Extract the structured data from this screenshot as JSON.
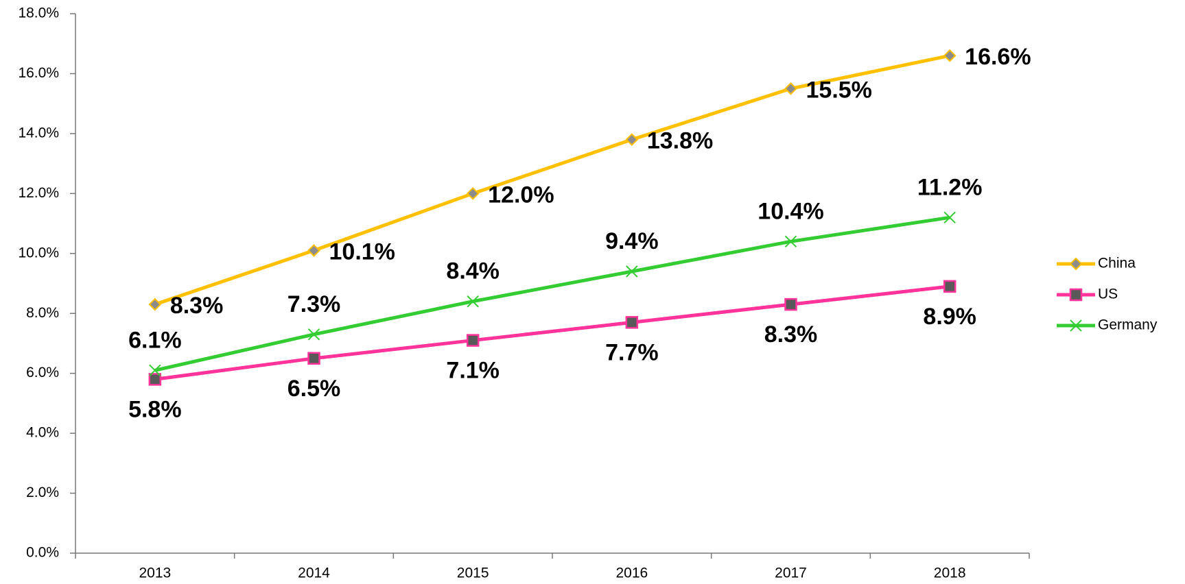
{
  "chart_data": {
    "type": "line",
    "categories": [
      "2013",
      "2014",
      "2015",
      "2016",
      "2017",
      "2018"
    ],
    "series": [
      {
        "name": "China",
        "color": "#ffc000",
        "values": [
          8.3,
          10.1,
          12.0,
          13.8,
          15.5,
          16.6
        ],
        "value_labels": [
          "8.3%",
          "10.1%",
          "12.0%",
          "13.8%",
          "15.5%",
          "16.6%"
        ]
      },
      {
        "name": "US",
        "color": "#ff3399",
        "values": [
          5.8,
          6.5,
          7.1,
          7.7,
          8.3,
          8.9
        ],
        "value_labels": [
          "5.8%",
          "6.5%",
          "7.1%",
          "7.7%",
          "8.3%",
          "8.9%"
        ]
      },
      {
        "name": "Germany",
        "color": "#33cc33",
        "values": [
          6.1,
          7.3,
          8.4,
          9.4,
          10.4,
          11.2
        ],
        "value_labels": [
          "6.1%",
          "7.3%",
          "8.4%",
          "9.4%",
          "10.4%",
          "11.2%"
        ]
      }
    ],
    "ylim": [
      0,
      18
    ],
    "yticks": [
      {
        "value": 0,
        "label": "0.0%"
      },
      {
        "value": 2,
        "label": "2.0%"
      },
      {
        "value": 4,
        "label": "4.0%"
      },
      {
        "value": 6,
        "label": "6.0%"
      },
      {
        "value": 8,
        "label": "8.0%"
      },
      {
        "value": 10,
        "label": "10.0%"
      },
      {
        "value": 12,
        "label": "12.0%"
      },
      {
        "value": 14,
        "label": "14.0%"
      },
      {
        "value": 16,
        "label": "16.0%"
      },
      {
        "value": 18,
        "label": "18.0%"
      }
    ],
    "grid": false,
    "legend": "right"
  }
}
